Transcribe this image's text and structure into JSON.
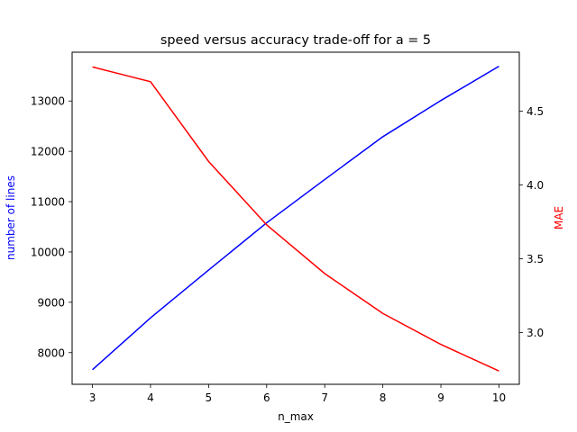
{
  "chart_data": {
    "type": "line",
    "title": "speed versus accuracy trade-off for a = 5",
    "xlabel": "n_max",
    "x": [
      3,
      4,
      5,
      6,
      7,
      8,
      9,
      10
    ],
    "xlim": [
      2.65,
      10.35
    ],
    "x_ticks": [
      3,
      4,
      5,
      6,
      7,
      8,
      9,
      10
    ],
    "grid": false,
    "legend": "none",
    "left_axis": {
      "label": "number of lines",
      "color": "#0000ff",
      "ylim": [
        7370,
        13970
      ],
      "ticks": [
        8000,
        9000,
        10000,
        11000,
        12000,
        13000
      ]
    },
    "right_axis": {
      "label": "MAE",
      "color": "#ff0000",
      "ylim": [
        2.65,
        4.9
      ],
      "ticks": [
        3.0,
        3.5,
        4.0,
        4.5
      ]
    },
    "series": [
      {
        "axis": "left",
        "color": "#0000ff",
        "values": [
          7660,
          8690,
          9640,
          10580,
          11440,
          12290,
          13010,
          13690
        ]
      },
      {
        "axis": "right",
        "color": "#ff0000",
        "values": [
          4.8,
          4.7,
          4.16,
          3.73,
          3.4,
          3.13,
          2.92,
          2.74
        ]
      }
    ]
  }
}
